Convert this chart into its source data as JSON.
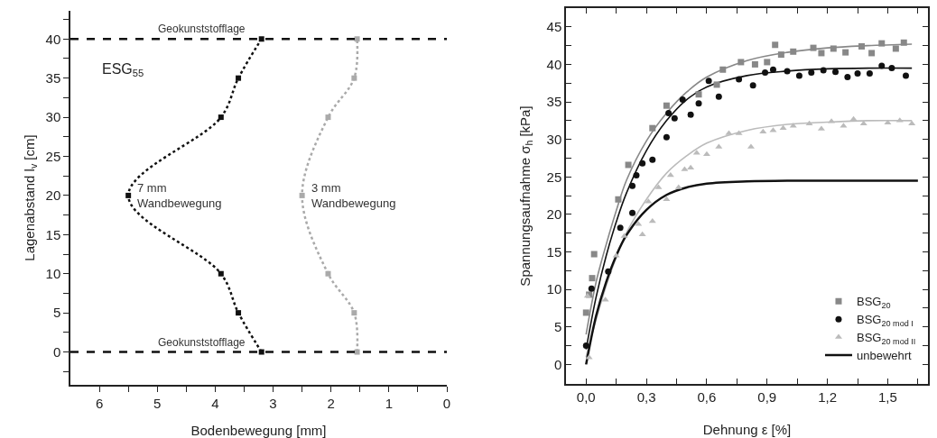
{
  "chart_data": [
    {
      "type": "line",
      "xlabel": "Bodenbewegung [mm]",
      "ylabel": "Lagenabstand l$_{v}$ [cm]",
      "xlim": [
        6.5,
        0
      ],
      "xticks": [
        0,
        {
          "value": 0.5,
          "label": null
        },
        1,
        {
          "value": 1.5,
          "label": null
        },
        2,
        {
          "value": 2.5,
          "label": null
        },
        3,
        {
          "value": 3.5,
          "label": null
        },
        4,
        {
          "value": 4.5,
          "label": null
        },
        5,
        {
          "value": 5.5,
          "label": null
        },
        6
      ],
      "ylim": [
        -4.2,
        43.6
      ],
      "yticks": [
        {
          "value": -2.5,
          "label": null
        },
        0,
        {
          "value": 2.5,
          "label": null
        },
        5,
        {
          "value": 7.5,
          "label": null
        },
        10,
        {
          "value": 12.5,
          "label": null
        },
        15,
        {
          "value": 17.5,
          "label": null
        },
        20,
        {
          "value": 22.5,
          "label": null
        },
        25,
        {
          "value": 27.5,
          "label": null
        },
        30,
        {
          "value": 32.5,
          "label": null
        },
        35,
        {
          "value": 37.5,
          "label": null
        },
        40,
        {
          "value": 42.5,
          "label": null
        }
      ],
      "grid": false,
      "legend": false,
      "marker": "square",
      "line_style": "dotted",
      "series": [
        {
          "name": "7 mm\nWandbewegung",
          "color": "#111111",
          "x": [
            3.2,
            3.6,
            3.9,
            5.5,
            3.9,
            3.6,
            3.2
          ],
          "values": [
            0,
            5,
            10,
            20,
            30,
            35,
            40
          ]
        },
        {
          "name": "3 mm\nWandbewegung",
          "color": "#aaaaaa",
          "x": [
            1.55,
            1.6,
            2.05,
            2.5,
            2.05,
            1.6,
            1.55
          ],
          "values": [
            0,
            5,
            10,
            20,
            30,
            35,
            40
          ]
        }
      ],
      "ref_lines": [
        {
          "axis": "y",
          "value": 0,
          "label": "Geokunststofflage",
          "color": "#111111",
          "line_style": "dashed"
        },
        {
          "axis": "y",
          "value": 40,
          "label": "Geokunststofflage",
          "color": "#111111",
          "line_style": "dashed"
        }
      ],
      "annotations": [
        "ESG$_{55}$"
      ]
    },
    {
      "type": "scatter",
      "xlabel": "Dehnung ε [%]",
      "ylabel": "Spannungsaufnahme σ$_{h}$ [kPa]",
      "xlim": [
        -0.1,
        1.7
      ],
      "xticks": [
        {
          "value": 0,
          "label": "0,0"
        },
        {
          "value": 0.15,
          "label": null
        },
        {
          "value": 0.3,
          "label": "0,3"
        },
        {
          "value": 0.45,
          "label": null
        },
        {
          "value": 0.6,
          "label": "0,6"
        },
        {
          "value": 0.75,
          "label": null
        },
        {
          "value": 0.9,
          "label": "0,9"
        },
        {
          "value": 1.05,
          "label": null
        },
        {
          "value": 1.2,
          "label": "1,2"
        },
        {
          "value": 1.35,
          "label": null
        },
        {
          "value": 1.5,
          "label": "1,5"
        },
        {
          "value": 1.65,
          "label": null
        }
      ],
      "ylim": [
        -2.6,
        47.5
      ],
      "yticks": [
        0,
        {
          "value": 2.5,
          "label": null
        },
        5,
        {
          "value": 7.5,
          "label": null
        },
        10,
        {
          "value": 12.5,
          "label": null
        },
        15,
        {
          "value": 17.5,
          "label": null
        },
        20,
        {
          "value": 22.5,
          "label": null
        },
        25,
        {
          "value": 27.5,
          "label": null
        },
        30,
        {
          "value": 32.5,
          "label": null
        },
        35,
        {
          "value": 37.5,
          "label": null
        },
        40,
        {
          "value": 42.5,
          "label": null
        },
        45
      ],
      "grid": false,
      "legend": "bottom right",
      "series": [
        {
          "name": "BSG$_{20}$",
          "color": "#888888",
          "marker": "square",
          "x": [
            0.0,
            0.015,
            0.03,
            0.04,
            0.16,
            0.21,
            0.33,
            0.4,
            0.56,
            0.65,
            0.68,
            0.77,
            0.84,
            0.9,
            0.94,
            0.97,
            1.03,
            1.13,
            1.17,
            1.23,
            1.29,
            1.37,
            1.42,
            1.47,
            1.54,
            1.58
          ],
          "values": [
            6.9,
            9.3,
            11.5,
            14.7,
            22.0,
            26.6,
            31.5,
            34.5,
            36.0,
            37.3,
            39.3,
            40.3,
            40.0,
            40.3,
            42.6,
            41.3,
            41.7,
            42.2,
            41.5,
            42.1,
            41.6,
            42.4,
            41.5,
            42.8,
            42.1,
            42.9
          ]
        },
        {
          "name": "BSG$_{20 mod I}$",
          "color": "#111111",
          "marker": "circle",
          "x": [
            0.0,
            0.027,
            0.11,
            0.17,
            0.23,
            0.23,
            0.25,
            0.28,
            0.33,
            0.4,
            0.41,
            0.44,
            0.48,
            0.52,
            0.56,
            0.61,
            0.66,
            0.76,
            0.83,
            0.89,
            0.93,
            1.0,
            1.06,
            1.12,
            1.18,
            1.24,
            1.3,
            1.35,
            1.41,
            1.47,
            1.52,
            1.59
          ],
          "values": [
            2.5,
            10.1,
            12.4,
            18.2,
            20.2,
            23.8,
            25.2,
            26.8,
            27.3,
            30.3,
            33.5,
            32.8,
            35.3,
            33.3,
            34.8,
            37.8,
            35.7,
            38.0,
            37.2,
            38.9,
            39.3,
            39.1,
            38.5,
            38.9,
            39.2,
            39.0,
            38.3,
            38.8,
            38.8,
            39.8,
            39.5,
            38.5
          ]
        },
        {
          "name": "BSG$_{20 mod II}$",
          "color": "#bbbbbb",
          "marker": "triangle",
          "x": [
            0.007,
            0.015,
            0.096,
            0.15,
            0.19,
            0.26,
            0.28,
            0.31,
            0.33,
            0.36,
            0.4,
            0.42,
            0.46,
            0.49,
            0.52,
            0.55,
            0.6,
            0.66,
            0.71,
            0.76,
            0.82,
            0.88,
            0.93,
            0.98,
            1.03,
            1.11,
            1.17,
            1.22,
            1.28,
            1.33,
            1.38,
            1.5,
            1.56,
            1.62
          ],
          "values": [
            9.1,
            0.9,
            8.6,
            14.5,
            17.1,
            18.7,
            17.3,
            21.7,
            19.1,
            23.6,
            22.0,
            25.2,
            23.6,
            26.0,
            26.2,
            28.2,
            28.0,
            29.0,
            30.8,
            30.8,
            29.0,
            31.0,
            31.2,
            31.5,
            31.8,
            32.1,
            31.4,
            32.4,
            31.8,
            32.7,
            32.1,
            32.2,
            32.5,
            32.1
          ]
        },
        {
          "type": "line",
          "color": "#888888",
          "marker": "none",
          "x": [
            0,
            0.05,
            0.1,
            0.15,
            0.2,
            0.3,
            0.4,
            0.5,
            0.6,
            0.8,
            1.0,
            1.2,
            1.4,
            1.62
          ],
          "values": [
            4.0,
            11,
            16,
            20.5,
            24.5,
            29.8,
            33.5,
            36.3,
            38.3,
            40.5,
            41.6,
            42.2,
            42.5,
            42.7
          ]
        },
        {
          "type": "line",
          "color": "#111111",
          "marker": "none",
          "x": [
            0,
            0.05,
            0.1,
            0.15,
            0.2,
            0.3,
            0.4,
            0.5,
            0.6,
            0.8,
            1.0,
            1.2,
            1.4,
            1.62
          ],
          "values": [
            2,
            9,
            14.5,
            19,
            22.8,
            28.5,
            32.5,
            35.3,
            37,
            38.5,
            39.1,
            39.4,
            39.5,
            39.5
          ]
        },
        {
          "type": "line",
          "color": "#bbbbbb",
          "marker": "none",
          "x": [
            0,
            0.05,
            0.1,
            0.15,
            0.2,
            0.3,
            0.4,
            0.5,
            0.6,
            0.8,
            1.0,
            1.2,
            1.4,
            1.62
          ],
          "values": [
            1,
            6,
            10.5,
            14.3,
            17.5,
            22,
            25.5,
            27.8,
            29.5,
            31.2,
            32,
            32.3,
            32.5,
            32.5
          ]
        },
        {
          "type": "line",
          "name": "unbewehrt",
          "color": "#111111",
          "marker": "none",
          "x": [
            0,
            0.05,
            0.1,
            0.15,
            0.2,
            0.3,
            0.4,
            0.5,
            0.6,
            0.8,
            1.0,
            1.2,
            1.4,
            1.65
          ],
          "values": [
            0,
            6.5,
            11,
            14.5,
            17.2,
            20.6,
            22.6,
            23.6,
            24.1,
            24.4,
            24.5,
            24.5,
            24.5,
            24.5
          ]
        }
      ]
    }
  ]
}
